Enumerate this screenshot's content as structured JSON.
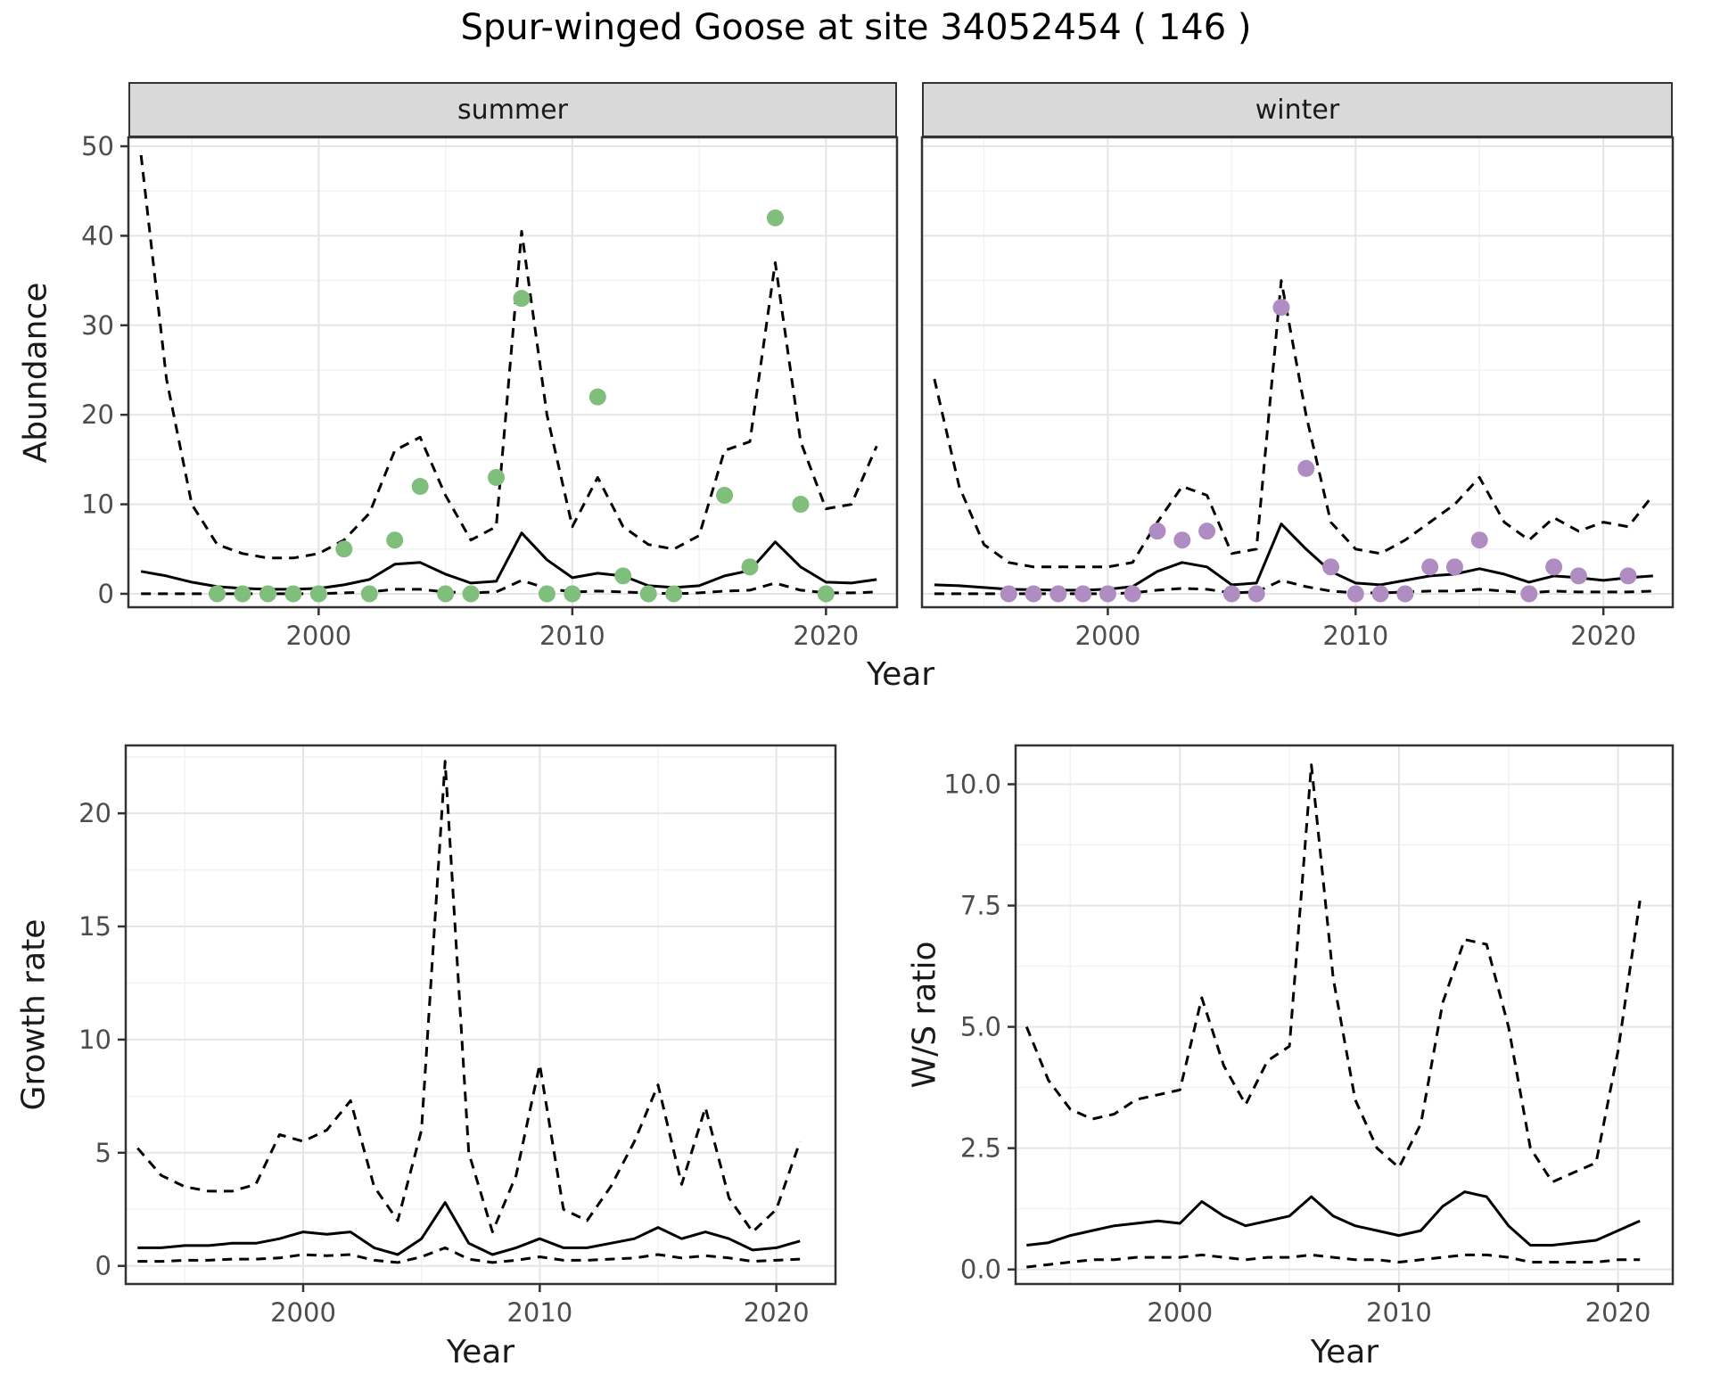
{
  "title": "Spur-winged Goose at site 34052454 ( 146 )",
  "labels": {
    "year": "Year",
    "abundance": "Abundance",
    "growth_rate": "Growth rate",
    "ws_ratio": "W/S ratio"
  },
  "facets": [
    {
      "label": "summer"
    },
    {
      "label": "winter"
    }
  ],
  "colors": {
    "summer_point": "#7fbf7b",
    "winter_point": "#af8dc3",
    "line": "#000000",
    "strip_bg": "#d9d9d9",
    "grid_major": "#e5e5e5",
    "grid_minor": "#f2f2f2",
    "panel_border": "#333333",
    "tick_text": "#4d4d4d"
  },
  "chart_data": [
    {
      "id": "abundance-summer",
      "type": "line",
      "facet": "summer",
      "ylabel": "Abundance",
      "xlabel": "Year",
      "xlim": [
        1992.5,
        2022.8
      ],
      "ylim": [
        -1.5,
        51
      ],
      "xticks": [
        2000,
        2010,
        2020
      ],
      "yticks": [
        0,
        10,
        20,
        30,
        40,
        50
      ],
      "point_color": "#7fbf7b",
      "years": [
        1993,
        1994,
        1995,
        1996,
        1997,
        1998,
        1999,
        2000,
        2001,
        2002,
        2003,
        2004,
        2005,
        2006,
        2007,
        2008,
        2009,
        2010,
        2011,
        2012,
        2013,
        2014,
        2015,
        2016,
        2017,
        2018,
        2019,
        2020,
        2021,
        2022
      ],
      "median": [
        2.5,
        2.0,
        1.3,
        0.8,
        0.6,
        0.5,
        0.5,
        0.6,
        1.0,
        1.6,
        3.3,
        3.5,
        2.2,
        1.2,
        1.4,
        6.8,
        3.8,
        1.8,
        2.3,
        2.0,
        0.9,
        0.7,
        0.9,
        2.0,
        2.6,
        5.8,
        3.0,
        1.3,
        1.2,
        1.6
      ],
      "upper": [
        49,
        24,
        10,
        5.5,
        4.5,
        4,
        4,
        4.5,
        6,
        9,
        16,
        17.5,
        11,
        6,
        7.5,
        40.5,
        20,
        7.5,
        13,
        7.5,
        5.5,
        5,
        6.5,
        16,
        17,
        37,
        17,
        9.5,
        10,
        16.5
      ],
      "lower": [
        0,
        0,
        0,
        0,
        0,
        0,
        0,
        0,
        0.1,
        0.2,
        0.5,
        0.5,
        0.2,
        0.1,
        0.2,
        1.5,
        0.6,
        0.2,
        0.3,
        0.2,
        0.1,
        0,
        0.1,
        0.3,
        0.4,
        1.2,
        0.4,
        0.1,
        0.1,
        0.2
      ],
      "points": [
        [
          1996,
          0
        ],
        [
          1997,
          0
        ],
        [
          1998,
          0
        ],
        [
          1999,
          0
        ],
        [
          2000,
          0
        ],
        [
          2001,
          5
        ],
        [
          2002,
          0
        ],
        [
          2003,
          6
        ],
        [
          2004,
          12
        ],
        [
          2005,
          0
        ],
        [
          2006,
          0
        ],
        [
          2007,
          13
        ],
        [
          2008,
          33
        ],
        [
          2009,
          0
        ],
        [
          2010,
          0
        ],
        [
          2011,
          22
        ],
        [
          2012,
          2
        ],
        [
          2013,
          0
        ],
        [
          2014,
          0
        ],
        [
          2016,
          11
        ],
        [
          2017,
          3
        ],
        [
          2018,
          42
        ],
        [
          2019,
          10
        ],
        [
          2020,
          0
        ]
      ]
    },
    {
      "id": "abundance-winter",
      "type": "line",
      "facet": "winter",
      "ylabel": "Abundance",
      "xlabel": "Year",
      "xlim": [
        1992.5,
        2022.8
      ],
      "ylim": [
        -1.5,
        51
      ],
      "xticks": [
        2000,
        2010,
        2020
      ],
      "yticks": [
        0,
        10,
        20,
        30,
        40,
        50
      ],
      "point_color": "#af8dc3",
      "years": [
        1993,
        1994,
        1995,
        1996,
        1997,
        1998,
        1999,
        2000,
        2001,
        2002,
        2003,
        2004,
        2005,
        2006,
        2007,
        2008,
        2009,
        2010,
        2011,
        2012,
        2013,
        2014,
        2015,
        2016,
        2017,
        2018,
        2019,
        2020,
        2021,
        2022
      ],
      "median": [
        1.0,
        0.9,
        0.7,
        0.5,
        0.45,
        0.4,
        0.4,
        0.5,
        0.8,
        2.5,
        3.5,
        3.0,
        1.0,
        1.2,
        7.8,
        5.0,
        2.5,
        1.2,
        1.0,
        1.5,
        2.0,
        2.2,
        2.8,
        2.2,
        1.3,
        2.0,
        1.8,
        1.5,
        1.8,
        2.0
      ],
      "upper": [
        24,
        12,
        5.5,
        3.5,
        3,
        3,
        3,
        3,
        3.5,
        8,
        12,
        11,
        4.5,
        5,
        35,
        20,
        8,
        5,
        4.5,
        6,
        8,
        10,
        13,
        8,
        6,
        8.5,
        7,
        8,
        7.5,
        11
      ],
      "lower": [
        0,
        0,
        0,
        0,
        0,
        0,
        0,
        0,
        0.1,
        0.4,
        0.6,
        0.5,
        0.1,
        0.2,
        1.5,
        0.8,
        0.3,
        0.1,
        0.1,
        0.2,
        0.3,
        0.3,
        0.5,
        0.3,
        0.1,
        0.3,
        0.2,
        0.2,
        0.2,
        0.3
      ],
      "points": [
        [
          1996,
          0
        ],
        [
          1997,
          0
        ],
        [
          1998,
          0
        ],
        [
          1999,
          0
        ],
        [
          2000,
          0
        ],
        [
          2001,
          0
        ],
        [
          2002,
          7
        ],
        [
          2003,
          6
        ],
        [
          2004,
          7
        ],
        [
          2005,
          0
        ],
        [
          2006,
          0
        ],
        [
          2007,
          32
        ],
        [
          2008,
          14
        ],
        [
          2009,
          3
        ],
        [
          2010,
          0
        ],
        [
          2011,
          0
        ],
        [
          2012,
          0
        ],
        [
          2013,
          3
        ],
        [
          2014,
          3
        ],
        [
          2015,
          6
        ],
        [
          2017,
          0
        ],
        [
          2018,
          3
        ],
        [
          2019,
          2
        ],
        [
          2021,
          2
        ]
      ]
    },
    {
      "id": "growth-rate",
      "type": "line",
      "ylabel": "Growth rate",
      "xlabel": "Year",
      "xlim": [
        1992.5,
        2022.5
      ],
      "ylim": [
        -0.8,
        23
      ],
      "xticks": [
        2000,
        2010,
        2020
      ],
      "yticks": [
        0,
        5,
        10,
        15,
        20
      ],
      "years": [
        1993,
        1994,
        1995,
        1996,
        1997,
        1998,
        1999,
        2000,
        2001,
        2002,
        2003,
        2004,
        2005,
        2006,
        2007,
        2008,
        2009,
        2010,
        2011,
        2012,
        2013,
        2014,
        2015,
        2016,
        2017,
        2018,
        2019,
        2020,
        2021
      ],
      "median": [
        0.8,
        0.8,
        0.9,
        0.9,
        1.0,
        1.0,
        1.2,
        1.5,
        1.4,
        1.5,
        0.8,
        0.5,
        1.2,
        2.8,
        1.0,
        0.5,
        0.8,
        1.2,
        0.8,
        0.8,
        1.0,
        1.2,
        1.7,
        1.2,
        1.5,
        1.2,
        0.7,
        0.8,
        1.1
      ],
      "upper": [
        5.2,
        4.0,
        3.5,
        3.3,
        3.3,
        3.6,
        5.8,
        5.5,
        6.0,
        7.3,
        3.5,
        2.0,
        6.0,
        22.3,
        5.0,
        1.5,
        4.0,
        8.9,
        2.5,
        2.0,
        3.5,
        5.5,
        8.0,
        3.6,
        7.0,
        3.0,
        1.5,
        2.5,
        5.5
      ],
      "lower": [
        0.2,
        0.2,
        0.25,
        0.25,
        0.3,
        0.3,
        0.35,
        0.5,
        0.45,
        0.5,
        0.25,
        0.15,
        0.4,
        0.8,
        0.3,
        0.15,
        0.25,
        0.4,
        0.25,
        0.25,
        0.3,
        0.35,
        0.5,
        0.35,
        0.45,
        0.35,
        0.2,
        0.25,
        0.3
      ]
    },
    {
      "id": "ws-ratio",
      "type": "line",
      "ylabel": "W/S ratio",
      "xlabel": "Year",
      "xlim": [
        1992.5,
        2022.5
      ],
      "ylim": [
        -0.3,
        10.8
      ],
      "xticks": [
        2000,
        2010,
        2020
      ],
      "yticks": [
        0,
        2.5,
        5,
        7.5,
        10
      ],
      "ytick_labels": [
        "0.0",
        "2.5",
        "5.0",
        "7.5",
        "10.0"
      ],
      "years": [
        1993,
        1994,
        1995,
        1996,
        1997,
        1998,
        1999,
        2000,
        2001,
        2002,
        2003,
        2004,
        2005,
        2006,
        2007,
        2008,
        2009,
        2010,
        2011,
        2012,
        2013,
        2014,
        2015,
        2016,
        2017,
        2018,
        2019,
        2020,
        2021
      ],
      "median": [
        0.5,
        0.55,
        0.7,
        0.8,
        0.9,
        0.95,
        1.0,
        0.95,
        1.4,
        1.1,
        0.9,
        1.0,
        1.1,
        1.5,
        1.1,
        0.9,
        0.8,
        0.7,
        0.8,
        1.3,
        1.6,
        1.5,
        0.9,
        0.5,
        0.5,
        0.55,
        0.6,
        0.8,
        1.0
      ],
      "upper": [
        5.0,
        3.9,
        3.3,
        3.1,
        3.2,
        3.5,
        3.6,
        3.7,
        5.6,
        4.2,
        3.4,
        4.3,
        4.6,
        10.4,
        6.0,
        3.5,
        2.5,
        2.1,
        3.0,
        5.5,
        6.8,
        6.7,
        5.0,
        2.5,
        1.8,
        2.0,
        2.2,
        4.5,
        7.6
      ],
      "lower": [
        0.05,
        0.1,
        0.15,
        0.2,
        0.2,
        0.25,
        0.25,
        0.25,
        0.3,
        0.25,
        0.2,
        0.25,
        0.25,
        0.3,
        0.25,
        0.2,
        0.2,
        0.15,
        0.2,
        0.25,
        0.3,
        0.3,
        0.25,
        0.15,
        0.15,
        0.15,
        0.15,
        0.2,
        0.2
      ]
    }
  ]
}
